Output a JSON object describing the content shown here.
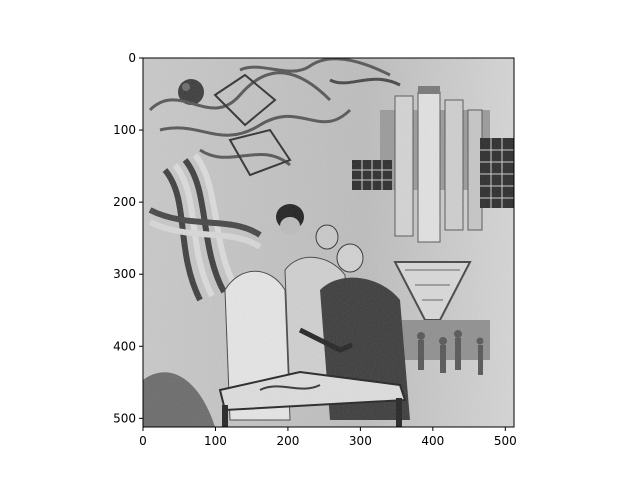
{
  "chart_data": {
    "type": "image",
    "title": "",
    "xlabel": "",
    "ylabel": "",
    "xlim": [
      0,
      512
    ],
    "ylim": [
      512,
      0
    ],
    "x_ticks": [
      0,
      100,
      200,
      300,
      400,
      500
    ],
    "y_ticks": [
      0,
      100,
      200,
      300,
      400,
      500
    ],
    "image_content": "grayscale-inverted-illustration",
    "colormap": "gray",
    "grid": false,
    "legend": "none"
  },
  "colors": {
    "background": "#ffffff",
    "axis": "#000000",
    "image_mid": "#b8b8b8"
  }
}
